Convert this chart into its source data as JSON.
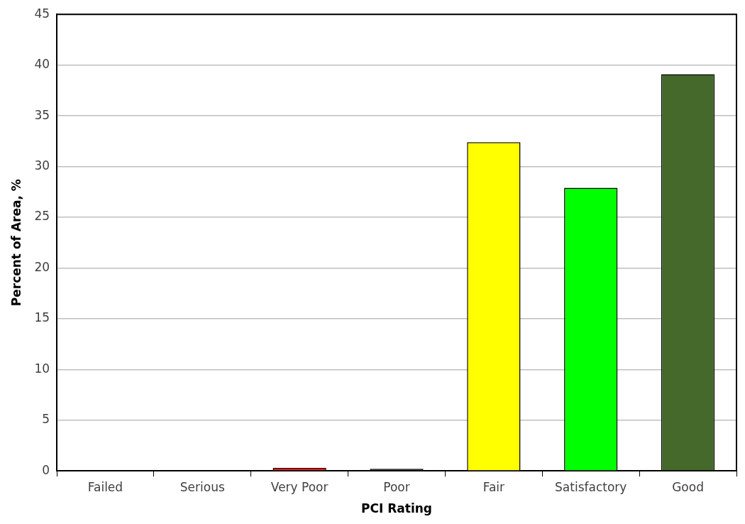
{
  "chart_data": {
    "type": "bar",
    "xlabel": "PCI Rating",
    "ylabel": "Percent of Area, %",
    "categories": [
      "Failed",
      "Serious",
      "Very Poor",
      "Poor",
      "Fair",
      "Satisfactory",
      "Good"
    ],
    "values": [
      0,
      0,
      0.3,
      0.2,
      32.4,
      27.9,
      39.1
    ],
    "colors": [
      "#7f7f7f",
      "#7f7f7f",
      "#ff0000",
      "#000000",
      "#ffff00",
      "#00ff00",
      "#44692a"
    ],
    "ylim": [
      0,
      45
    ],
    "yticks": [
      0,
      5,
      10,
      15,
      20,
      25,
      30,
      35,
      40,
      45
    ],
    "grid": "y",
    "legend": false
  }
}
